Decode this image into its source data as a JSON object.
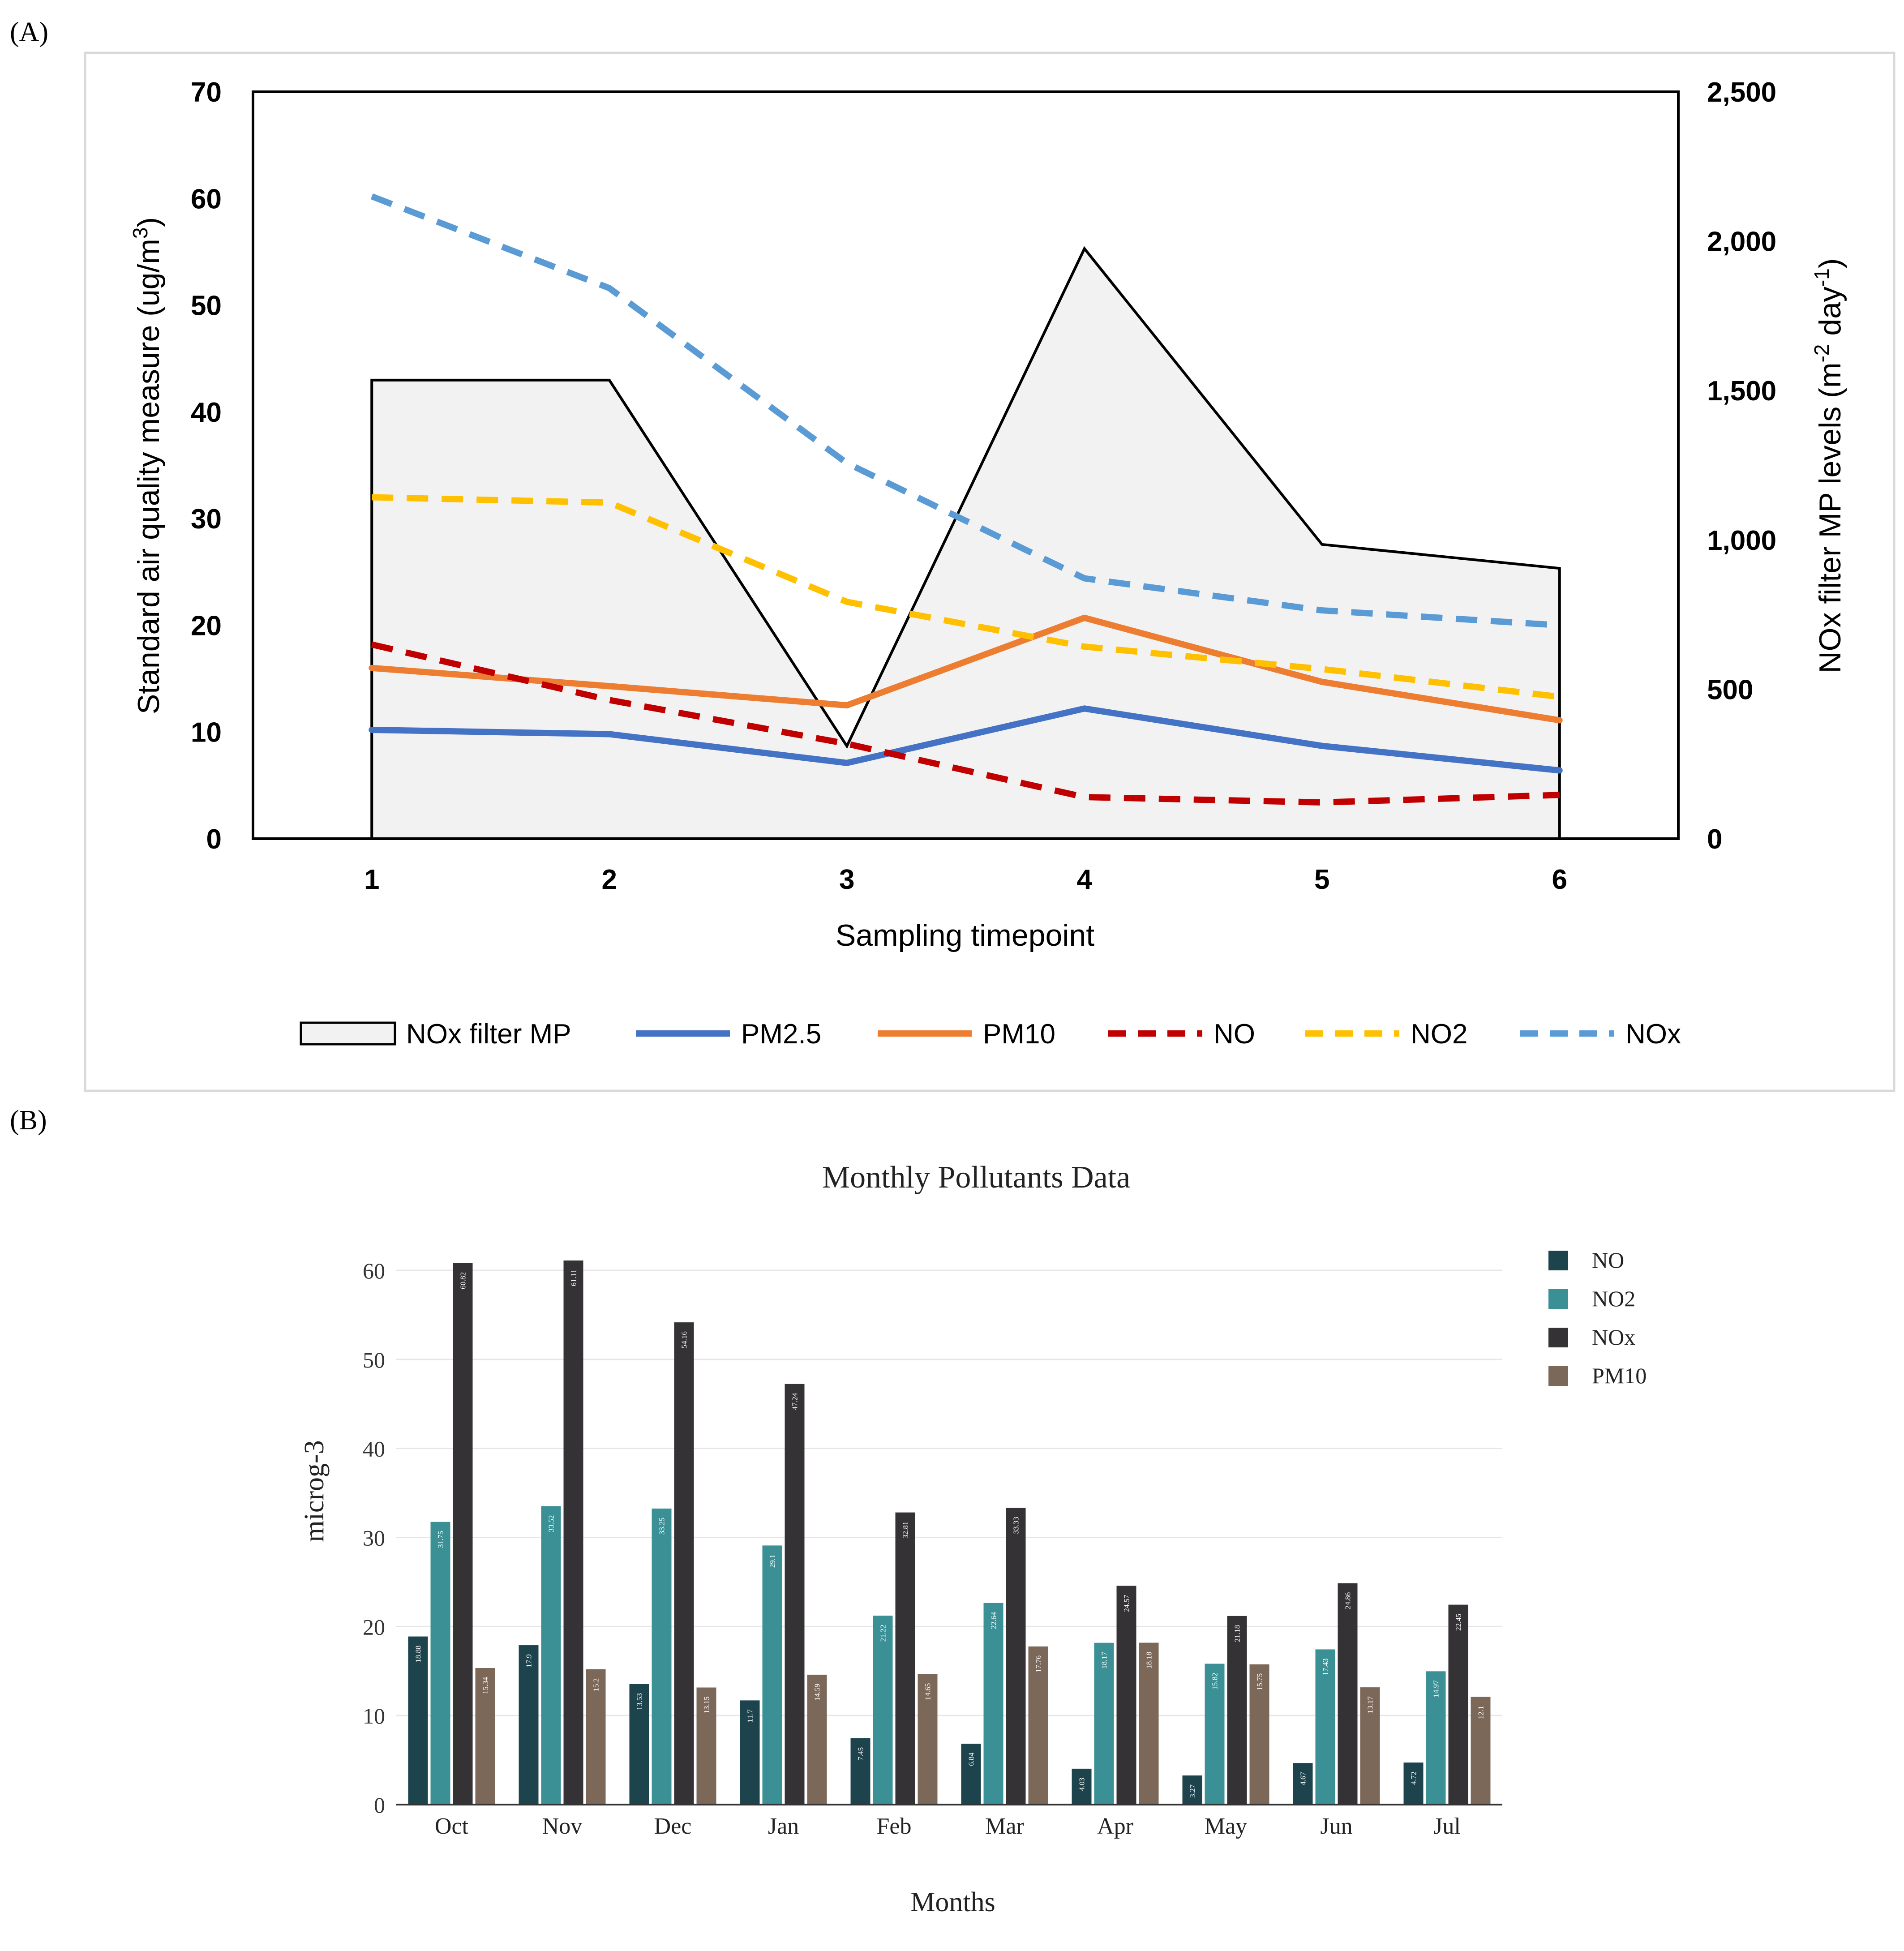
{
  "panel_labels": {
    "a": "(A)",
    "b": "(B)"
  },
  "colors": {
    "no": "#c00000",
    "no2": "#ffc000",
    "nox": "#5b9bd5",
    "pm25": "#4472c4",
    "pm10": "#ed7d31",
    "area_fill": "#f2f2f2",
    "bar_no": "#1d434d",
    "bar_no2": "#3b9096",
    "bar_nox": "#343234",
    "bar_pm10": "#7c6859"
  },
  "chart_data": [
    {
      "type": "line",
      "id": "A",
      "title": "",
      "xlabel": "Sampling timepoint",
      "ylabel_prefix": "Standard air quality measure (ug/m",
      "ylabel_sup": "3",
      "ylabel_suffix": ")",
      "y2label_prefix": "NOx filter MP levels (m",
      "y2label_sup1": "-2",
      "y2label_mid": " day",
      "y2label_sup2": "-1",
      "y2label_suffix": ")",
      "x": [
        1,
        2,
        3,
        4,
        5,
        6
      ],
      "x_tick_labels": [
        "1",
        "2",
        "3",
        "4",
        "5",
        "6"
      ],
      "ylim": [
        0,
        70
      ],
      "y_ticks": [
        0,
        10,
        20,
        30,
        40,
        50,
        60,
        70
      ],
      "y_tick_labels": [
        "0",
        "10",
        "20",
        "30",
        "40",
        "50",
        "60",
        "70"
      ],
      "y2lim": [
        0,
        2500
      ],
      "y2_ticks": [
        0,
        500,
        1000,
        1500,
        2000,
        2500
      ],
      "y2_tick_labels": [
        "0",
        "500",
        "1,000",
        "1,500",
        "2,000",
        "2,500"
      ],
      "area_series": {
        "name": "NOx filter MP",
        "axis": "secondary",
        "values": [
          1535,
          1535,
          310,
          1975,
          985,
          905
        ]
      },
      "series": [
        {
          "name": "PM2.5",
          "key": "pm25",
          "dashed": false,
          "values": [
            10.2,
            9.8,
            7.1,
            12.2,
            8.7,
            6.4
          ]
        },
        {
          "name": "PM10",
          "key": "pm10",
          "dashed": false,
          "values": [
            16.0,
            14.3,
            12.5,
            20.7,
            14.7,
            11.1
          ]
        },
        {
          "name": "NO",
          "key": "no",
          "dashed": true,
          "values": [
            18.2,
            13.0,
            8.9,
            3.9,
            3.4,
            4.1
          ]
        },
        {
          "name": "NO2",
          "key": "no2",
          "dashed": true,
          "values": [
            32.0,
            31.5,
            22.2,
            18.0,
            15.9,
            13.3
          ]
        },
        {
          "name": "NOx",
          "key": "nox",
          "dashed": true,
          "values": [
            60.2,
            51.6,
            35.2,
            24.4,
            21.4,
            20.0
          ]
        }
      ],
      "legend": [
        "NOx filter MP",
        "PM2.5",
        "PM10",
        "NO",
        "NO2",
        "NOx"
      ],
      "legend_position": "bottom"
    },
    {
      "type": "bar",
      "id": "B",
      "title": "Monthly Pollutants Data",
      "xlabel": "Months",
      "ylabel": "microg-3",
      "categories": [
        "Oct",
        "Nov",
        "Dec",
        "Jan",
        "Feb",
        "Mar",
        "Apr",
        "May",
        "Jun",
        "Jul"
      ],
      "ylim": [
        0,
        63
      ],
      "y_ticks": [
        0,
        10,
        20,
        30,
        40,
        50,
        60
      ],
      "y_tick_labels": [
        "0",
        "10",
        "20",
        "30",
        "40",
        "50",
        "60"
      ],
      "series": [
        {
          "name": "NO",
          "key": "bar_no",
          "values": [
            18.88,
            17.9,
            13.53,
            11.7,
            7.45,
            6.84,
            4.03,
            3.27,
            4.67,
            4.72
          ],
          "labels": [
            "18.88",
            "17.9",
            "13.53",
            "11.7",
            "7.45",
            "6.84",
            "4.03",
            "3.27",
            "4.67",
            "4.72"
          ]
        },
        {
          "name": "NO2",
          "key": "bar_no2",
          "values": [
            31.75,
            33.52,
            33.25,
            29.1,
            21.22,
            22.64,
            18.17,
            15.82,
            17.43,
            14.97
          ],
          "labels": [
            "31.75",
            "33.52",
            "33.25",
            "29.1",
            "21.22",
            "22.64",
            "18.17",
            "15.82",
            "17.43",
            "14.97"
          ]
        },
        {
          "name": "NOx",
          "key": "bar_nox",
          "values": [
            60.82,
            61.11,
            54.16,
            47.24,
            32.81,
            33.33,
            24.57,
            21.18,
            24.86,
            22.45
          ],
          "labels": [
            "60.82",
            "61.11",
            "54.16",
            "47.24",
            "32.81",
            "33.33",
            "24.57",
            "21.18",
            "24.86",
            "22.45"
          ]
        },
        {
          "name": "PM10",
          "key": "bar_pm10",
          "values": [
            15.34,
            15.2,
            13.15,
            14.59,
            14.65,
            17.76,
            18.18,
            15.75,
            13.17,
            12.1
          ],
          "labels": [
            "15.34",
            "15.2",
            "13.15",
            "14.59",
            "14.65",
            "17.76",
            "18.18",
            "15.75",
            "13.17",
            "12.1"
          ]
        }
      ],
      "legend": [
        "NO",
        "NO2",
        "NOx",
        "PM10"
      ],
      "legend_position": "right",
      "grid": true
    }
  ]
}
